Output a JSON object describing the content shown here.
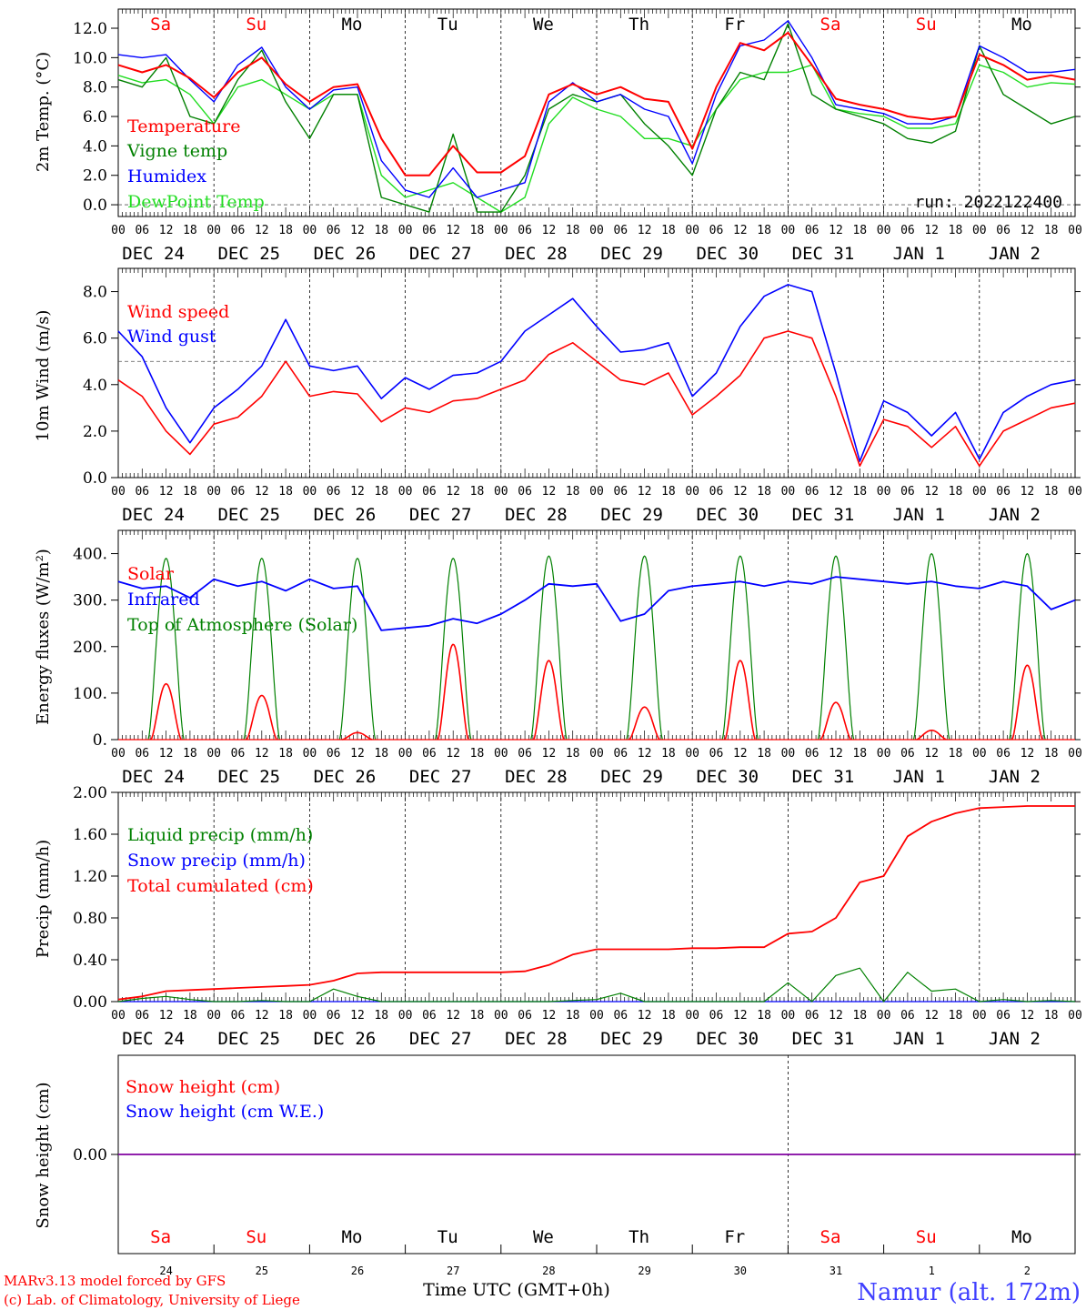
{
  "run_label": "run: 2022122400",
  "days": [
    "DEC 24",
    "DEC 25",
    "DEC 26",
    "DEC 27",
    "DEC 28",
    "DEC 29",
    "DEC 30",
    "DEC 31",
    "JAN  1",
    "JAN  2"
  ],
  "weekdays": [
    "Sa",
    "Su",
    "Mo",
    "Tu",
    "We",
    "Th",
    "Fr",
    "Sa",
    "Su",
    "Mo"
  ],
  "hour_ticks": [
    "00",
    "06",
    "12",
    "18"
  ],
  "hour_end": "00",
  "snow_day_numbers": [
    "24",
    "25",
    "26",
    "27",
    "28",
    "29",
    "30",
    "31",
    "1",
    "2"
  ],
  "xlabel": "Time UTC (GMT+0h)",
  "footer_left": [
    "MARv3.13 model forced by GFS",
    "(c) Lab. of Climatology, University of Liege"
  ],
  "footer_right": "Namur (alt. 172m)",
  "colors": {
    "red": "#ff0000",
    "green": "#008000",
    "blue": "#0000ff",
    "lightgreen": "#22dd22",
    "purple": "#8000a0"
  },
  "chart_data": [
    {
      "type": "line",
      "ylabel": "2m Temp. (°C)",
      "ylim": [
        -0.8,
        13.3
      ],
      "yticks": [
        0.0,
        2.0,
        4.0,
        6.0,
        8.0,
        10.0,
        12.0
      ],
      "ytick_labels": [
        "0.0",
        "2.0",
        "4.0",
        "6.0",
        "8.0",
        "10.0",
        "12.0"
      ],
      "reference_line": 0.0,
      "x": [
        0,
        6,
        12,
        18,
        24,
        30,
        36,
        42,
        48,
        54,
        60,
        66,
        72,
        78,
        84,
        90,
        96,
        102,
        108,
        114,
        120,
        126,
        132,
        138,
        144,
        150,
        156,
        162,
        168,
        174,
        180,
        186,
        192,
        198,
        204,
        210,
        216,
        222,
        228,
        234,
        240
      ],
      "series": [
        {
          "name": "Temperature",
          "color": "red",
          "values": [
            9.5,
            9.0,
            9.5,
            8.6,
            7.3,
            9.0,
            10.0,
            8.2,
            7.0,
            8.0,
            8.2,
            4.5,
            2.0,
            2.0,
            4.0,
            2.2,
            2.2,
            3.3,
            7.5,
            8.2,
            7.5,
            8.0,
            7.2,
            7.0,
            3.8,
            8.0,
            11.0,
            10.5,
            11.7,
            9.5,
            7.2,
            6.8,
            6.5,
            6.0,
            5.8,
            6.0,
            10.2,
            9.5,
            8.5,
            8.8,
            8.5
          ]
        },
        {
          "name": "Vigne temp",
          "color": "green",
          "values": [
            8.5,
            8.0,
            10.0,
            6.0,
            5.5,
            8.5,
            10.5,
            7.0,
            4.5,
            7.5,
            7.5,
            0.5,
            0.0,
            -0.5,
            4.8,
            -0.5,
            -0.5,
            2.0,
            6.5,
            7.5,
            7.0,
            7.5,
            5.5,
            4.0,
            2.0,
            6.5,
            9.0,
            8.5,
            12.3,
            7.5,
            6.5,
            6.0,
            5.5,
            4.5,
            4.2,
            5.0,
            10.8,
            7.5,
            6.5,
            5.5,
            6.0
          ]
        },
        {
          "name": "Humidex",
          "color": "blue",
          "values": [
            10.2,
            10.0,
            10.2,
            8.5,
            7.0,
            9.5,
            10.7,
            8.0,
            6.5,
            7.8,
            8.0,
            3.0,
            1.0,
            0.5,
            2.5,
            0.5,
            1.0,
            1.5,
            7.0,
            8.3,
            7.0,
            7.5,
            6.5,
            6.0,
            2.8,
            7.5,
            10.8,
            11.2,
            12.5,
            10.0,
            6.8,
            6.5,
            6.2,
            5.5,
            5.5,
            6.0,
            10.8,
            10.0,
            9.0,
            9.0,
            9.2
          ]
        },
        {
          "name": "DewPoint Temp",
          "color": "lightgreen",
          "values": [
            8.8,
            8.3,
            8.5,
            7.5,
            5.5,
            8.0,
            8.5,
            7.5,
            6.5,
            7.5,
            7.5,
            2.0,
            0.5,
            1.0,
            1.5,
            0.5,
            -0.5,
            0.5,
            5.5,
            7.3,
            6.5,
            6.0,
            4.5,
            4.5,
            4.0,
            6.5,
            8.5,
            9.0,
            9.0,
            9.5,
            6.5,
            6.2,
            6.0,
            5.2,
            5.2,
            5.5,
            9.5,
            9.0,
            8.0,
            8.3,
            8.2
          ]
        }
      ]
    },
    {
      "type": "line",
      "ylabel": "10m Wind (m/s)",
      "ylim": [
        0,
        9.0
      ],
      "yticks": [
        0.0,
        2.0,
        4.0,
        6.0,
        8.0
      ],
      "ytick_labels": [
        "0.0",
        "2.0",
        "4.0",
        "6.0",
        "8.0"
      ],
      "reference_line": 5.0,
      "x": [
        0,
        6,
        12,
        18,
        24,
        30,
        36,
        42,
        48,
        54,
        60,
        66,
        72,
        78,
        84,
        90,
        96,
        102,
        108,
        114,
        120,
        126,
        132,
        138,
        144,
        150,
        156,
        162,
        168,
        174,
        180,
        186,
        192,
        198,
        204,
        210,
        216,
        222,
        228,
        234,
        240
      ],
      "series": [
        {
          "name": "Wind speed",
          "color": "red",
          "values": [
            4.2,
            3.5,
            2.0,
            1.0,
            2.3,
            2.6,
            3.5,
            5.0,
            3.5,
            3.7,
            3.6,
            2.4,
            3.0,
            2.8,
            3.3,
            3.4,
            3.8,
            4.2,
            5.3,
            5.8,
            5.0,
            4.2,
            4.0,
            4.5,
            2.7,
            3.5,
            4.4,
            6.0,
            6.3,
            6.0,
            3.5,
            0.5,
            2.5,
            2.2,
            1.3,
            2.2,
            0.5,
            2.0,
            2.5,
            3.0,
            3.2
          ]
        },
        {
          "name": "Wind gust",
          "color": "blue",
          "values": [
            6.3,
            5.2,
            3.0,
            1.5,
            3.0,
            3.8,
            4.8,
            6.8,
            4.8,
            4.6,
            4.8,
            3.4,
            4.3,
            3.8,
            4.4,
            4.5,
            5.0,
            6.3,
            7.0,
            7.7,
            6.5,
            5.4,
            5.5,
            5.8,
            3.5,
            4.5,
            6.5,
            7.8,
            8.3,
            8.0,
            4.5,
            0.7,
            3.3,
            2.8,
            1.8,
            2.8,
            0.8,
            2.8,
            3.5,
            4.0,
            4.2
          ]
        }
      ]
    },
    {
      "type": "line",
      "ylabel": "Energy fluxes (W/m²)",
      "ylim": [
        0,
        450
      ],
      "yticks": [
        0,
        100,
        200,
        300,
        400
      ],
      "ytick_labels": [
        "0.",
        "100.",
        "200.",
        "300.",
        "400."
      ],
      "x_infrared": [
        0,
        6,
        12,
        18,
        24,
        30,
        36,
        42,
        48,
        54,
        60,
        66,
        72,
        78,
        84,
        90,
        96,
        102,
        108,
        114,
        120,
        126,
        132,
        138,
        144,
        150,
        156,
        162,
        168,
        174,
        180,
        186,
        192,
        198,
        204,
        210,
        216,
        222,
        228,
        234,
        240
      ],
      "series": [
        {
          "name": "Solar",
          "color": "red",
          "days_peak": [
            120,
            95,
            15,
            205,
            170,
            70,
            170,
            80,
            20,
            160
          ]
        },
        {
          "name": "Infrared",
          "color": "blue",
          "values": [
            340,
            325,
            330,
            305,
            345,
            330,
            340,
            320,
            345,
            325,
            330,
            235,
            240,
            245,
            260,
            250,
            270,
            300,
            335,
            330,
            335,
            255,
            270,
            320,
            330,
            335,
            340,
            330,
            340,
            335,
            350,
            345,
            340,
            335,
            340,
            330,
            325,
            340,
            330,
            280,
            300
          ]
        },
        {
          "name": "Top of Atmosphere (Solar)",
          "color": "green",
          "days_peak": [
            390,
            390,
            390,
            390,
            395,
            395,
            395,
            395,
            400,
            400
          ]
        }
      ]
    },
    {
      "type": "line",
      "ylabel": "Precip (mm/h)",
      "ylim": [
        0,
        2.0
      ],
      "yticks": [
        0,
        0.4,
        0.8,
        1.2,
        1.6,
        2.0
      ],
      "ytick_labels": [
        "0.00",
        "0.40",
        "0.80",
        "1.20",
        "1.60",
        "2.00"
      ],
      "x": [
        0,
        6,
        12,
        18,
        24,
        30,
        36,
        42,
        48,
        54,
        60,
        66,
        72,
        78,
        84,
        90,
        96,
        102,
        108,
        114,
        120,
        126,
        132,
        138,
        144,
        150,
        156,
        162,
        168,
        174,
        180,
        186,
        192,
        198,
        204,
        210,
        216,
        222,
        228,
        234,
        240
      ],
      "series": [
        {
          "name": "Liquid precip (mm/h)",
          "color": "green",
          "values": [
            0,
            0.03,
            0.05,
            0.02,
            0,
            0,
            0.01,
            0,
            0,
            0.12,
            0.05,
            0,
            0,
            0,
            0,
            0,
            0,
            0,
            0,
            0.01,
            0.02,
            0.08,
            0,
            0,
            0,
            0,
            0,
            0,
            0.18,
            0,
            0.25,
            0.32,
            0,
            0.28,
            0.1,
            0.12,
            0,
            0.02,
            0,
            0.01,
            0
          ]
        },
        {
          "name": "Snow precip (mm/h)",
          "color": "blue",
          "values": [
            0,
            0,
            0,
            0,
            0,
            0,
            0,
            0,
            0,
            0,
            0,
            0,
            0,
            0,
            0,
            0,
            0,
            0,
            0,
            0,
            0,
            0,
            0,
            0,
            0,
            0,
            0,
            0,
            0,
            0,
            0,
            0,
            0,
            0,
            0,
            0,
            0,
            0,
            0,
            0,
            0
          ]
        },
        {
          "name": "Total cumulated (cm)",
          "color": "red",
          "values": [
            0.02,
            0.05,
            0.1,
            0.11,
            0.12,
            0.13,
            0.14,
            0.15,
            0.16,
            0.2,
            0.27,
            0.28,
            0.28,
            0.28,
            0.28,
            0.28,
            0.28,
            0.29,
            0.35,
            0.45,
            0.5,
            0.5,
            0.5,
            0.5,
            0.51,
            0.51,
            0.52,
            0.52,
            0.65,
            0.67,
            0.8,
            1.14,
            1.2,
            1.58,
            1.72,
            1.8,
            1.85,
            1.86,
            1.87,
            1.87,
            1.87
          ]
        }
      ]
    },
    {
      "type": "line",
      "ylabel": "Snow height (cm)",
      "ylim": [
        -1,
        1
      ],
      "yticks": [
        0
      ],
      "ytick_labels": [
        "0.00"
      ],
      "series": [
        {
          "name": "Snow height (cm)",
          "color": "red",
          "values": [
            0,
            0
          ]
        },
        {
          "name": "Snow height (cm W.E.)",
          "color": "blue",
          "values": [
            0,
            0
          ]
        }
      ]
    }
  ]
}
